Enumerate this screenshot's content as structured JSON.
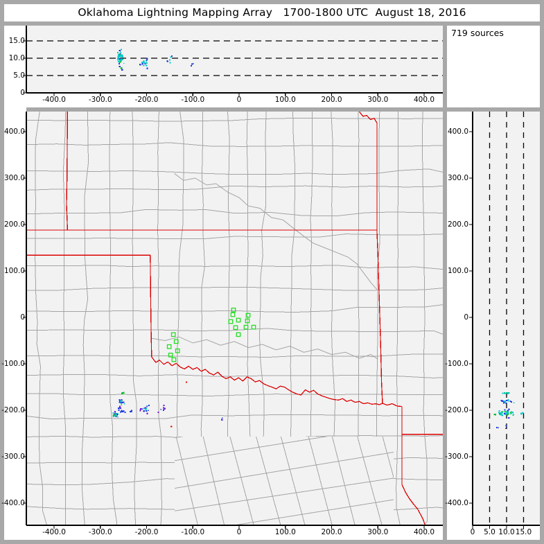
{
  "title": "Oklahoma Lightning Mapping Array   1700-1800 UTC  August 18, 2016",
  "sources_label": "719 sources",
  "colors": {
    "frame": "#a8a8a8",
    "panel_bg": "#f2f2f2",
    "county_line": "#a4a4a4",
    "state_line": "#dd0000",
    "axis": "#000000",
    "dashed_line": "#000000",
    "station": "#22dd22"
  },
  "point_colors": {
    "cyan": "#00c8c8",
    "green": "#00c020",
    "blue": "#2038e0",
    "purple": "#7a10d8",
    "red": "#e01800"
  },
  "chart_data": {
    "type": "scatter",
    "title": "Oklahoma Lightning Mapping Array   1700-1800 UTC  August 18, 2016",
    "source_count": 719,
    "layout_note": "three linked panels: altitude vs east-west (top), plan view map (main), altitude vs north-south (right)",
    "x_range_km": [
      -460,
      440
    ],
    "y_range_km": [
      -446,
      443
    ],
    "alt_range_km": [
      0,
      19.5
    ],
    "dashed_alt_km": [
      5,
      10,
      15
    ],
    "ew_ticks": {
      "values": [
        -400,
        -300,
        -200,
        -100,
        0,
        100,
        200,
        300,
        400
      ],
      "labels": [
        "-400.0",
        "-300.0",
        "-200.0",
        "-100.0",
        "0",
        "100.0",
        "200.0",
        "300.0",
        "400.0"
      ]
    },
    "ns_ticks": {
      "values": [
        400,
        300,
        200,
        100,
        0,
        -100,
        -200,
        -300,
        -400
      ],
      "labels": [
        "400.0",
        "300.0",
        "200.0",
        "100.0",
        "0",
        "-100.0",
        "-200.0",
        "-300.0",
        "-400.0"
      ]
    },
    "alt_ticks": {
      "values": [
        0,
        5,
        10,
        15
      ],
      "labels": [
        "0",
        "5.0",
        "10.0",
        "15.0"
      ]
    },
    "stations_km": [
      [
        -12,
        16
      ],
      [
        -13.5,
        6
      ],
      [
        -18,
        -9
      ],
      [
        -1.5,
        -6
      ],
      [
        -7.5,
        -22
      ],
      [
        15,
        -21
      ],
      [
        -1.5,
        -37
      ],
      [
        19.5,
        4.5
      ],
      [
        18,
        -7.5
      ],
      [
        31.5,
        -21
      ],
      [
        -142,
        -37
      ],
      [
        -136,
        -52
      ],
      [
        -151,
        -63
      ],
      [
        -133,
        -72
      ],
      [
        -148,
        -81
      ],
      [
        -141,
        -91
      ]
    ],
    "clusters": {
      "plan": [
        {
          "u": -252,
          "v": -163,
          "su": 4,
          "sv": 4,
          "n": 9,
          "colors": [
            "green",
            "cyan",
            "purple"
          ]
        },
        {
          "u": -255,
          "v": -181,
          "su": 5,
          "sv": 6,
          "n": 13,
          "colors": [
            "cyan",
            "green",
            "blue"
          ]
        },
        {
          "u": -259,
          "v": -196,
          "su": 3,
          "sv": 4,
          "n": 5,
          "colors": [
            "purple",
            "blue"
          ]
        },
        {
          "u": -268,
          "v": -209,
          "su": 6,
          "sv": 7,
          "n": 22,
          "colors": [
            "green",
            "blue",
            "purple",
            "cyan"
          ]
        },
        {
          "u": -251,
          "v": -201,
          "su": 4,
          "sv": 5,
          "n": 9,
          "colors": [
            "blue"
          ]
        },
        {
          "u": -234,
          "v": -204,
          "su": 3,
          "sv": 3,
          "n": 3,
          "colors": [
            "blue"
          ]
        },
        {
          "u": -203,
          "v": -196,
          "su": 9,
          "sv": 7,
          "n": 15,
          "colors": [
            "blue",
            "purple",
            "cyan"
          ]
        },
        {
          "u": -162,
          "v": -198,
          "su": 10,
          "sv": 5,
          "n": 7,
          "colors": [
            "blue",
            "purple"
          ]
        },
        {
          "u": -37,
          "v": -222,
          "su": 3,
          "sv": 8,
          "n": 4,
          "colors": [
            "purple",
            "blue"
          ]
        },
        {
          "u": -114,
          "v": -139,
          "su": 1,
          "sv": 1,
          "n": 1,
          "colors": [
            "red"
          ]
        },
        {
          "u": -147,
          "v": -236,
          "su": 1,
          "sv": 1,
          "n": 1,
          "colors": [
            "red"
          ]
        }
      ],
      "alt_ew": [
        {
          "u": -258,
          "v": 10.4,
          "su": 6,
          "sv": 2.2,
          "n": 46,
          "colors": [
            "cyan",
            "green",
            "blue",
            "cyan"
          ]
        },
        {
          "u": -256,
          "v": 7.2,
          "su": 3,
          "sv": 0.8,
          "n": 5,
          "colors": [
            "green",
            "blue"
          ]
        },
        {
          "u": -203,
          "v": 8.8,
          "su": 9,
          "sv": 1.1,
          "n": 17,
          "colors": [
            "cyan",
            "blue",
            "cyan"
          ]
        },
        {
          "u": -150,
          "v": 9.3,
          "su": 5,
          "sv": 1.4,
          "n": 6,
          "colors": [
            "blue",
            "cyan"
          ]
        },
        {
          "u": -101,
          "v": 9.0,
          "su": 2,
          "sv": 0.9,
          "n": 3,
          "colors": [
            "blue"
          ]
        }
      ],
      "alt_ns": [
        {
          "u": 9.8,
          "v": -163,
          "su": 1.4,
          "sv": 2.5,
          "n": 12,
          "colors": [
            "cyan",
            "green",
            "cyan"
          ]
        },
        {
          "u": 9.6,
          "v": -181,
          "su": 1.7,
          "sv": 3.5,
          "n": 16,
          "colors": [
            "cyan",
            "blue"
          ]
        },
        {
          "u": 9.5,
          "v": -205,
          "su": 2.4,
          "sv": 7,
          "n": 40,
          "colors": [
            "cyan",
            "green",
            "blue",
            "cyan"
          ]
        },
        {
          "u": 14.2,
          "v": -207,
          "su": 1.2,
          "sv": 2,
          "n": 3,
          "colors": [
            "cyan"
          ]
        },
        {
          "u": 8.6,
          "v": -237,
          "su": 1.4,
          "sv": 4,
          "n": 4,
          "colors": [
            "blue",
            "cyan"
          ]
        }
      ]
    },
    "borders_km": [
      {
        "name": "co-ks-102w",
        "pts": [
          [
            -371,
            443
          ],
          [
            -372,
            300
          ],
          [
            -373,
            245
          ],
          [
            -371,
            188
          ]
        ]
      },
      {
        "name": "ok-ks-37n",
        "pts": [
          [
            -460,
            188
          ],
          [
            298,
            188
          ]
        ]
      },
      {
        "name": "ks-mo-river",
        "pts": [
          [
            260,
            443
          ],
          [
            268,
            433
          ],
          [
            276,
            435
          ],
          [
            284,
            426
          ],
          [
            292,
            429
          ],
          [
            298,
            419
          ],
          [
            298,
            188
          ]
        ]
      },
      {
        "name": "ok-mo-ar-east",
        "pts": [
          [
            298,
            188
          ],
          [
            300,
            134
          ],
          [
            303,
            40
          ],
          [
            306,
            -60
          ],
          [
            308,
            -140
          ],
          [
            310,
            -185
          ]
        ]
      },
      {
        "name": "ok-se-corner",
        "pts": [
          [
            310,
            -185
          ],
          [
            320,
            -189
          ],
          [
            331,
            -186
          ],
          [
            342,
            -191
          ],
          [
            352,
            -192
          ]
        ]
      },
      {
        "name": "tx-ar-la",
        "pts": [
          [
            352,
            -192
          ],
          [
            352,
            -360
          ],
          [
            360,
            -377
          ],
          [
            368,
            -390
          ],
          [
            377,
            -402
          ],
          [
            386,
            -413
          ],
          [
            392,
            -424
          ],
          [
            398,
            -436
          ],
          [
            402,
            -447
          ]
        ]
      },
      {
        "name": "ar-la-33n",
        "pts": [
          [
            352,
            -252
          ],
          [
            441,
            -252
          ]
        ]
      },
      {
        "name": "ok-panhandle-36-5n",
        "pts": [
          [
            -460,
            134
          ],
          [
            -192,
            134
          ]
        ]
      },
      {
        "name": "tx-ok-100w",
        "pts": [
          [
            -192,
            134
          ],
          [
            -191,
            30
          ],
          [
            -190,
            -40
          ],
          [
            -189,
            -85
          ]
        ]
      },
      {
        "name": "red-river",
        "pts": [
          [
            -189,
            -85
          ],
          [
            -180,
            -97
          ],
          [
            -172,
            -92
          ],
          [
            -163,
            -101
          ],
          [
            -154,
            -96
          ],
          [
            -145,
            -104
          ],
          [
            -136,
            -99
          ],
          [
            -127,
            -107
          ],
          [
            -118,
            -111
          ],
          [
            -109,
            -105
          ],
          [
            -100,
            -112
          ],
          [
            -91,
            -108
          ],
          [
            -82,
            -116
          ],
          [
            -73,
            -112
          ],
          [
            -64,
            -120
          ],
          [
            -55,
            -124
          ],
          [
            -46,
            -118
          ],
          [
            -37,
            -127
          ],
          [
            -28,
            -132
          ],
          [
            -19,
            -128
          ],
          [
            -10,
            -135
          ],
          [
            -1,
            -130
          ],
          [
            8,
            -137
          ],
          [
            17,
            -128
          ],
          [
            26,
            -132
          ],
          [
            35,
            -139
          ],
          [
            44,
            -136
          ],
          [
            53,
            -143
          ],
          [
            62,
            -147
          ],
          [
            71,
            -150
          ],
          [
            80,
            -154
          ],
          [
            89,
            -148
          ],
          [
            98,
            -150
          ],
          [
            107,
            -156
          ],
          [
            116,
            -161
          ],
          [
            125,
            -165
          ],
          [
            134,
            -167
          ],
          [
            143,
            -156
          ],
          [
            152,
            -161
          ],
          [
            161,
            -157
          ],
          [
            170,
            -165
          ],
          [
            179,
            -169
          ],
          [
            188,
            -172
          ],
          [
            197,
            -175
          ],
          [
            206,
            -177
          ],
          [
            215,
            -178
          ],
          [
            224,
            -175
          ],
          [
            233,
            -181
          ],
          [
            242,
            -178
          ],
          [
            251,
            -183
          ],
          [
            260,
            -181
          ],
          [
            269,
            -186
          ],
          [
            278,
            -184
          ],
          [
            287,
            -187
          ],
          [
            296,
            -186
          ],
          [
            303,
            -188
          ],
          [
            310,
            -185
          ]
        ]
      }
    ],
    "gray_rivers_km": [
      {
        "name": "arkansas-river",
        "pts": [
          [
            -140,
            310
          ],
          [
            -120,
            295
          ],
          [
            -95,
            300
          ],
          [
            -70,
            285
          ],
          [
            -50,
            288
          ],
          [
            -25,
            270
          ],
          [
            0,
            258
          ],
          [
            20,
            240
          ],
          [
            45,
            235
          ],
          [
            70,
            215
          ],
          [
            95,
            210
          ],
          [
            120,
            190
          ],
          [
            140,
            175
          ],
          [
            160,
            160
          ],
          [
            185,
            150
          ],
          [
            210,
            140
          ],
          [
            235,
            130
          ],
          [
            255,
            115
          ],
          [
            270,
            95
          ],
          [
            285,
            75
          ],
          [
            298,
            60
          ]
        ]
      },
      {
        "name": "canadian-river",
        "pts": [
          [
            -190,
            -45
          ],
          [
            -160,
            -50
          ],
          [
            -130,
            -42
          ],
          [
            -100,
            -55
          ],
          [
            -70,
            -48
          ],
          [
            -40,
            -60
          ],
          [
            -10,
            -52
          ],
          [
            20,
            -65
          ],
          [
            50,
            -58
          ],
          [
            80,
            -70
          ],
          [
            110,
            -62
          ],
          [
            140,
            -75
          ],
          [
            170,
            -68
          ],
          [
            200,
            -80
          ],
          [
            230,
            -75
          ],
          [
            260,
            -88
          ],
          [
            285,
            -80
          ],
          [
            300,
            -90
          ]
        ]
      }
    ]
  }
}
